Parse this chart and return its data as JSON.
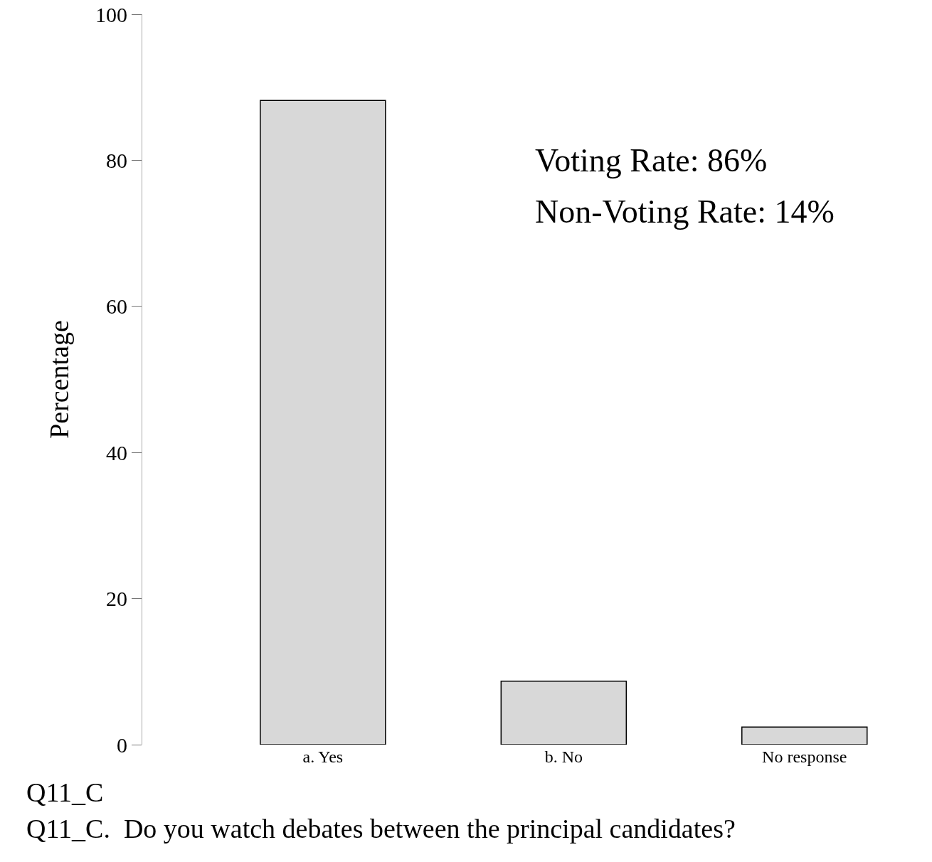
{
  "chart_data": {
    "type": "bar",
    "ylabel": "Percentage",
    "categories": [
      "a. Yes",
      "b. No",
      "No response"
    ],
    "values": [
      88.2,
      8.7,
      2.4
    ],
    "color": "#d8d8d8",
    "ylim": [
      0,
      100
    ],
    "yticks": [
      0,
      20,
      40,
      60,
      80,
      100
    ],
    "grid": false,
    "annotations": [
      "Voting Rate: 86%",
      "Non-Voting Rate: 14%",
      "Q11_C",
      "Q11_C.  Do you watch debates between the principal candidates?"
    ]
  }
}
